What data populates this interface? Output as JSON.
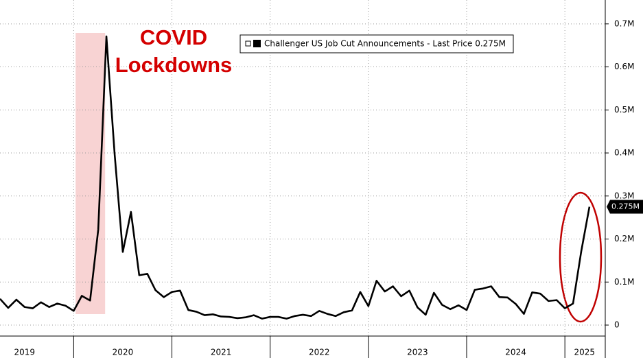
{
  "chart_data": {
    "type": "line",
    "annotations": [
      "COVID",
      "Lockdowns"
    ],
    "shade": [
      2020.02,
      2020.32
    ],
    "x": [
      2019.25,
      2019.333,
      2019.417,
      2019.5,
      2019.583,
      2019.667,
      2019.75,
      2019.833,
      2019.917,
      2020.0,
      2020.083,
      2020.167,
      2020.25,
      2020.333,
      2020.417,
      2020.5,
      2020.583,
      2020.667,
      2020.75,
      2020.833,
      2020.917,
      2021.0,
      2021.083,
      2021.167,
      2021.25,
      2021.333,
      2021.417,
      2021.5,
      2021.583,
      2021.667,
      2021.75,
      2021.833,
      2021.917,
      2022.0,
      2022.083,
      2022.167,
      2022.25,
      2022.333,
      2022.417,
      2022.5,
      2022.583,
      2022.667,
      2022.75,
      2022.833,
      2022.917,
      2023.0,
      2023.083,
      2023.167,
      2023.25,
      2023.333,
      2023.417,
      2023.5,
      2023.583,
      2023.667,
      2023.75,
      2023.833,
      2023.917,
      2024.0,
      2024.083,
      2024.167,
      2024.25,
      2024.333,
      2024.417,
      2024.5,
      2024.583,
      2024.667,
      2024.75,
      2024.833,
      2024.917,
      2025.0,
      2025.083,
      2025.167,
      2025.25
    ],
    "series": [
      {
        "name": "Challenger US Job Cut Announcements - Last Price 0.275M",
        "color": "#000000",
        "values": [
          0.061,
          0.04,
          0.059,
          0.042,
          0.039,
          0.053,
          0.042,
          0.05,
          0.045,
          0.033,
          0.068,
          0.057,
          0.222,
          0.671,
          0.397,
          0.17,
          0.263,
          0.116,
          0.119,
          0.081,
          0.065,
          0.077,
          0.08,
          0.035,
          0.031,
          0.023,
          0.025,
          0.02,
          0.019,
          0.016,
          0.018,
          0.023,
          0.015,
          0.019,
          0.019,
          0.015,
          0.021,
          0.024,
          0.021,
          0.033,
          0.026,
          0.021,
          0.03,
          0.034,
          0.077,
          0.044,
          0.103,
          0.078,
          0.09,
          0.067,
          0.08,
          0.041,
          0.024,
          0.075,
          0.047,
          0.037,
          0.046,
          0.035,
          0.082,
          0.085,
          0.09,
          0.065,
          0.064,
          0.049,
          0.026,
          0.076,
          0.073,
          0.056,
          0.058,
          0.039,
          0.05,
          0.172,
          0.275
        ],
        "value_labels": [
          null,
          null,
          null,
          null,
          null,
          null,
          null,
          null,
          null,
          null,
          null,
          null,
          null,
          null,
          null,
          null,
          null,
          null,
          null,
          null,
          null,
          null,
          null,
          null,
          null,
          null,
          null,
          null,
          null,
          null,
          null,
          null,
          null,
          null,
          null,
          null,
          null,
          null,
          null,
          null,
          null,
          null,
          null,
          null,
          null,
          null,
          null,
          null,
          null,
          null,
          null,
          null,
          null,
          null,
          null,
          null,
          null,
          null,
          null,
          null,
          null,
          null,
          null,
          null,
          null,
          null,
          null,
          null,
          null,
          null,
          null,
          null,
          "0.275M"
        ]
      }
    ],
    "xlim": [
      2019.25,
      2025.411
    ],
    "xticks": [
      {
        "value": 2019.5,
        "label": "2019"
      },
      {
        "value": 2020.5,
        "label": "2020"
      },
      {
        "value": 2021.5,
        "label": "2021"
      },
      {
        "value": 2022.5,
        "label": "2022"
      },
      {
        "value": 2023.5,
        "label": "2023"
      },
      {
        "value": 2024.5,
        "label": "2024"
      },
      {
        "value": 2025.2,
        "label": "2025"
      }
    ],
    "ylim": [
      -0.0255,
      0.7555
    ],
    "yticks": [
      0,
      {
        "value": 0.1,
        "label": "0.1M"
      },
      {
        "value": 0.2,
        "label": "0.2M"
      },
      {
        "value": 0.3,
        "label": "0.3M"
      },
      {
        "value": 0.4,
        "label": "0.4M"
      },
      {
        "value": 0.5,
        "label": "0.5M"
      },
      {
        "value": 0.6,
        "label": "0.6M"
      },
      {
        "value": 0.7,
        "label": "0.7M"
      }
    ],
    "grid": true
  }
}
